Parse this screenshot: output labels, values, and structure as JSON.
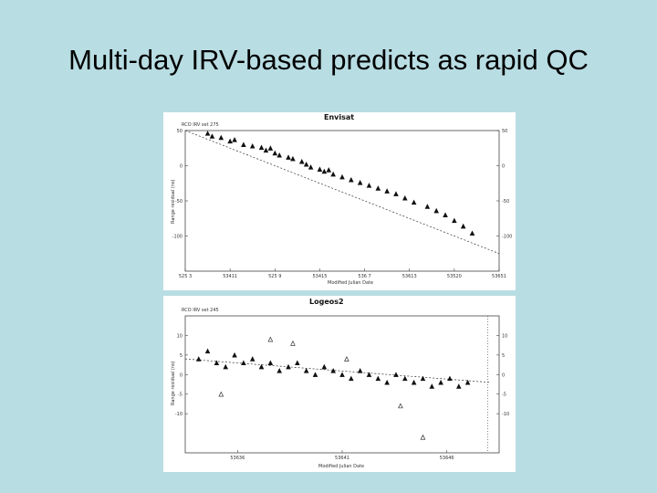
{
  "slide": {
    "title": "Multi-day IRV-based predicts as rapid QC"
  },
  "chart_data": [
    {
      "type": "scatter",
      "title": "Envisat",
      "subtitle": "RCO   IRV set 275",
      "xlabel": "Modified Julian Date",
      "ylabel": "Range residual (ns)",
      "x_ticks": [
        "525 3",
        "53411",
        "525 9",
        "53415",
        "536 7",
        "53613",
        "53520",
        "53651"
      ],
      "xlim": [
        0,
        7
      ],
      "ylim": [
        -150,
        50
      ],
      "y_ticks": [
        50,
        0,
        -50,
        -100
      ],
      "trend_line": {
        "x": [
          0.0,
          7.0
        ],
        "y": [
          50,
          -125
        ]
      },
      "series": [
        {
          "name": "passes",
          "x": [
            0.5,
            0.6,
            0.8,
            1.0,
            1.1,
            1.3,
            1.5,
            1.7,
            1.8,
            1.9,
            2.0,
            2.1,
            2.3,
            2.4,
            2.6,
            2.7,
            2.8,
            3.0,
            3.1,
            3.2,
            3.3,
            3.5,
            3.7,
            3.9,
            4.1,
            4.3,
            4.5,
            4.7,
            4.9,
            5.1,
            5.4,
            5.6,
            5.8,
            6.0,
            6.2,
            6.4
          ],
          "y": [
            46,
            42,
            40,
            35,
            37,
            30,
            28,
            26,
            22,
            25,
            18,
            15,
            12,
            10,
            6,
            2,
            -2,
            -5,
            -8,
            -6,
            -12,
            -16,
            -20,
            -24,
            -28,
            -32,
            -36,
            -40,
            -46,
            -52,
            -58,
            -64,
            -70,
            -78,
            -86,
            -96
          ]
        }
      ]
    },
    {
      "type": "scatter",
      "title": "Logeos2",
      "subtitle": "RCO   IRV set 245",
      "xlabel": "Modified Julian Date",
      "ylabel": "Range residual (ns)",
      "x_ticks": [
        "53636",
        "53641",
        "53646"
      ],
      "xlim": [
        0,
        7
      ],
      "ylim": [
        -20,
        15
      ],
      "y_ticks": [
        10,
        5,
        0,
        -5,
        -10
      ],
      "trend_line": {
        "x": [
          0.0,
          6.8
        ],
        "y": [
          4,
          -2
        ]
      },
      "series": [
        {
          "name": "passes",
          "x": [
            0.3,
            0.5,
            0.7,
            0.9,
            1.1,
            1.3,
            1.5,
            1.7,
            1.9,
            2.1,
            2.3,
            2.5,
            2.7,
            2.9,
            3.1,
            3.3,
            3.5,
            3.7,
            3.9,
            4.1,
            4.3,
            4.5,
            4.7,
            4.9,
            5.1,
            5.3,
            5.5,
            5.7,
            5.9,
            6.1,
            6.3
          ],
          "y": [
            4,
            6,
            3,
            2,
            5,
            3,
            4,
            2,
            3,
            1,
            2,
            3,
            1,
            0,
            2,
            1,
            0,
            -1,
            1,
            0,
            -1,
            -2,
            0,
            -1,
            -2,
            -1,
            -3,
            -2,
            -1,
            -3,
            -2
          ]
        },
        {
          "name": "outliers",
          "x": [
            0.8,
            1.9,
            2.4,
            3.6,
            4.8,
            5.3
          ],
          "y": [
            -5,
            9,
            8,
            4,
            -8,
            -16
          ]
        }
      ]
    }
  ]
}
